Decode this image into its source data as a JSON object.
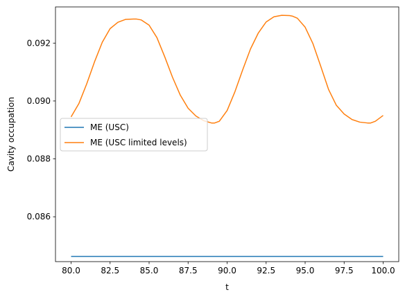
{
  "chart_data": {
    "type": "line",
    "title": "",
    "xlabel": "t",
    "ylabel": "Cavity occupation",
    "xlim": [
      79.0,
      101.0
    ],
    "ylim": [
      0.08445,
      0.09325
    ],
    "xticks": [
      80.0,
      82.5,
      85.0,
      87.5,
      90.0,
      92.5,
      95.0,
      97.5,
      100.0
    ],
    "xtick_labels": [
      "80.0",
      "82.5",
      "85.0",
      "87.5",
      "90.0",
      "92.5",
      "95.0",
      "97.5",
      "100.0"
    ],
    "yticks": [
      0.086,
      0.088,
      0.09,
      0.092
    ],
    "ytick_labels": [
      "0.086",
      "0.088",
      "0.090",
      "0.092"
    ],
    "grid": false,
    "legend_position": "center-left",
    "series": [
      {
        "name": "ME (USC)",
        "color": "#1f77b4",
        "x": [
          80.0,
          100.0
        ],
        "y": [
          0.08463,
          0.08463
        ]
      },
      {
        "name": "ME (USC limited levels)",
        "color": "#ff7f0e",
        "x": [
          80.0,
          80.5,
          81.0,
          81.5,
          82.0,
          82.5,
          83.0,
          83.5,
          84.0,
          84.2,
          84.5,
          85.0,
          85.5,
          86.0,
          86.5,
          87.0,
          87.5,
          88.0,
          88.5,
          89.0,
          89.2,
          89.5,
          90.0,
          90.5,
          91.0,
          91.5,
          92.0,
          92.5,
          93.0,
          93.5,
          94.0,
          94.2,
          94.5,
          95.0,
          95.5,
          96.0,
          96.5,
          97.0,
          97.5,
          98.0,
          98.5,
          99.0,
          99.2,
          99.5,
          100.0
        ],
        "y": [
          0.08945,
          0.08991,
          0.09059,
          0.09135,
          0.09203,
          0.0925,
          0.09272,
          0.09282,
          0.09283,
          0.09283,
          0.0928,
          0.09262,
          0.09219,
          0.09153,
          0.09082,
          0.0902,
          0.08975,
          0.08948,
          0.08932,
          0.08924,
          0.08924,
          0.0893,
          0.08967,
          0.09032,
          0.09108,
          0.0918,
          0.09235,
          0.09273,
          0.09291,
          0.09296,
          0.09295,
          0.09293,
          0.09286,
          0.09255,
          0.09198,
          0.0912,
          0.0904,
          0.08985,
          0.08955,
          0.08936,
          0.08927,
          0.08924,
          0.08924,
          0.0893,
          0.0895
        ]
      }
    ]
  }
}
